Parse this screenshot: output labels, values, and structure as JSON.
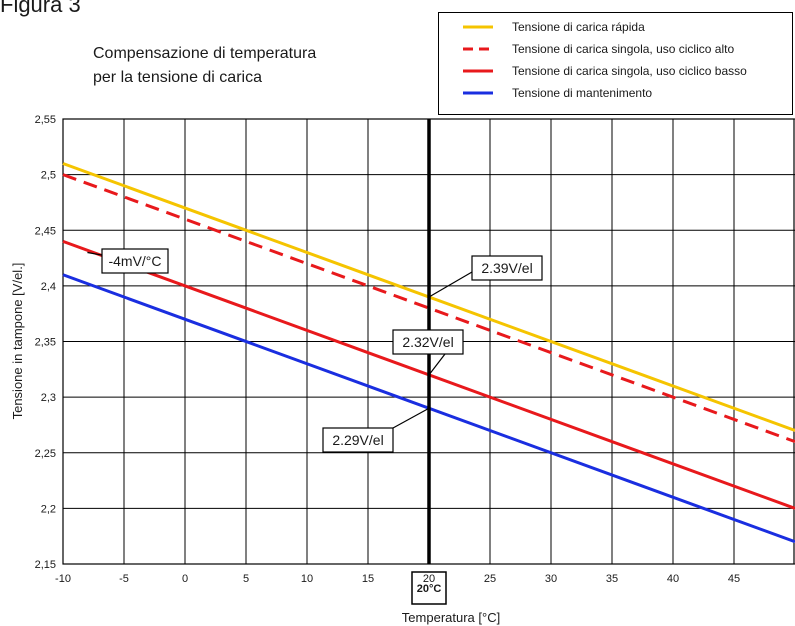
{
  "figure_label": "Figura 3",
  "chart_data": {
    "type": "line",
    "title_lines": [
      "Compensazione di temperatura",
      "per la tensione di carica"
    ],
    "xlabel": "Temperatura [°C]",
    "ylabel": "Tensione in tampone [V/el.]",
    "xlim": [
      -10,
      50
    ],
    "ylim": [
      2.15,
      2.55
    ],
    "x_ticks": [
      "-10",
      "-5",
      "0",
      "5",
      "10",
      "15",
      "20",
      "25",
      "30",
      "35",
      "40",
      "45"
    ],
    "x_tick_values": [
      -10,
      -5,
      0,
      5,
      10,
      15,
      20,
      25,
      30,
      35,
      40,
      45
    ],
    "y_ticks": [
      "2,15",
      "2,2",
      "2,25",
      "2,3",
      "2,35",
      "2,4",
      "2,45",
      "2,5",
      "2,55"
    ],
    "y_tick_values": [
      2.15,
      2.2,
      2.25,
      2.3,
      2.35,
      2.4,
      2.45,
      2.5,
      2.55
    ],
    "grid": true,
    "legend_position": "top-right",
    "series": [
      {
        "name": "Tensione di carica rápida",
        "color": "#f5c400",
        "dash": false,
        "x": [
          -10,
          50
        ],
        "y": [
          2.51,
          2.27
        ]
      },
      {
        "name": "Tensione di carica singola, uso ciclico alto",
        "color": "#e8191c",
        "dash": true,
        "x": [
          -10,
          50
        ],
        "y": [
          2.5,
          2.26
        ]
      },
      {
        "name": "Tensione di carica singola, uso ciclico basso",
        "color": "#e8191c",
        "dash": false,
        "x": [
          -10,
          50
        ],
        "y": [
          2.44,
          2.2
        ]
      },
      {
        "name": "Tensione di mantenimento",
        "color": "#1a2ee0",
        "dash": false,
        "x": [
          -10,
          50
        ],
        "y": [
          2.41,
          2.17
        ]
      }
    ],
    "reference_line": {
      "x": 20,
      "label": "20°C"
    },
    "annotations": [
      {
        "text": "-4mV/°C",
        "point_x": -8,
        "point_y": 2.43
      },
      {
        "text": "2.39V/el",
        "point_x": 20,
        "point_y": 2.39
      },
      {
        "text": "2.32V/el",
        "point_x": 20,
        "point_y": 2.32
      },
      {
        "text": "2.29V/el",
        "point_x": 20,
        "point_y": 2.29
      }
    ]
  }
}
